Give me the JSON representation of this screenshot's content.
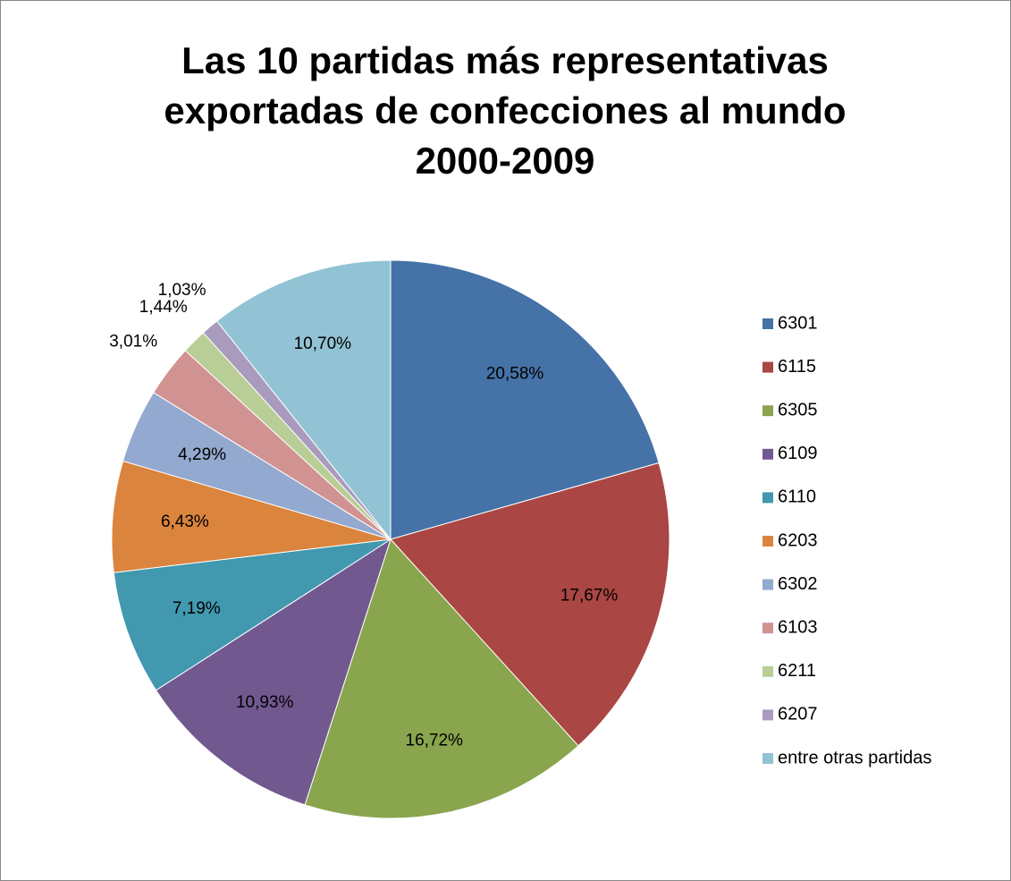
{
  "chart_data": {
    "type": "pie",
    "title": "Las 10 partidas más representativas exportadas de confecciones al mundo 2000-2009",
    "categories": [
      "6301",
      "6115",
      "6305",
      "6109",
      "6110",
      "6203",
      "6302",
      "6103",
      "6211",
      "6207",
      "entre otras partidas"
    ],
    "values": [
      20.58,
      17.67,
      16.72,
      10.93,
      7.19,
      6.43,
      4.29,
      3.01,
      1.44,
      1.03,
      10.7
    ],
    "value_labels": [
      "20,58%",
      "17,67%",
      "16,72%",
      "10,93%",
      "7,19%",
      "6,43%",
      "4,29%",
      "3,01%",
      "1,44%",
      "1,03%",
      "10,70%"
    ],
    "colors": [
      "#4572a7",
      "#aa4643",
      "#89a54e",
      "#71588f",
      "#4198af",
      "#db843d",
      "#93a9cf",
      "#d19392",
      "#b9cd96",
      "#a99bbd",
      "#92c3d5"
    ],
    "legend": "right"
  }
}
